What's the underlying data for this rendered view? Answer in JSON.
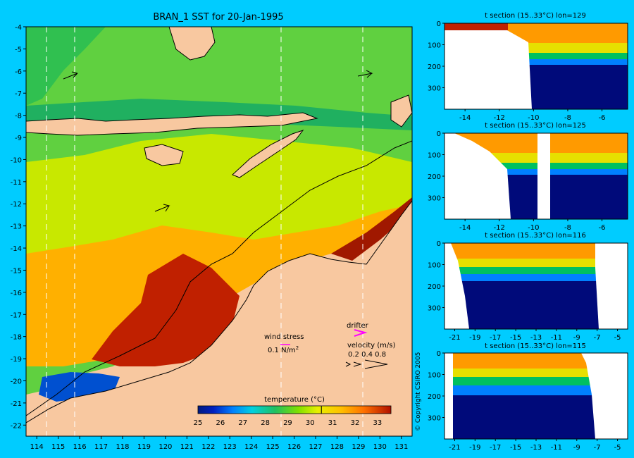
{
  "chart_data": [
    {
      "type": "heatmap",
      "title": "BRAN_1 SST for 20-Jan-1995",
      "xticks": [
        "114",
        "115",
        "116",
        "117",
        "118",
        "119",
        "120",
        "121",
        "122",
        "123",
        "124",
        "125",
        "126",
        "127",
        "128",
        "129",
        "130",
        "131"
      ],
      "yticks": [
        "-4",
        "-5",
        "-6",
        "-7",
        "-8",
        "-9",
        "-10",
        "-11",
        "-12",
        "-13",
        "-14",
        "-15",
        "-16",
        "-17",
        "-18",
        "-19",
        "-20",
        "-21",
        "-22"
      ],
      "xlim": [
        113.5,
        131.5
      ],
      "ylim": [
        -22.5,
        -4
      ],
      "dashed_section_lons": [
        114.5,
        115.8,
        125.4,
        129.2
      ],
      "colorbar": {
        "label": "temperature (°C)",
        "ticks": [
          "25",
          "26",
          "27",
          "28",
          "29",
          "30",
          "31",
          "32",
          "33"
        ],
        "range": [
          25,
          33.6
        ],
        "marker": 30.5
      },
      "legend": {
        "wind_stress": "wind stress",
        "wind_scale": "0.1 N/m",
        "wind_scale_sup": "2",
        "drifter": "drifter",
        "velocity": "velocity (m/s)",
        "velocity_scale": "0.2 0.4 0.8"
      },
      "copyright": "© Copyright CSIRO 2005"
    },
    {
      "type": "heatmap",
      "title": "t section (15..33°C) lon=129",
      "xticks": [
        "-14",
        "-12",
        "-10",
        "-8",
        "-6"
      ],
      "yticks": [
        "0",
        "100",
        "200",
        "300"
      ],
      "xlim": [
        -15.2,
        -4.5
      ],
      "ylim": [
        0,
        400
      ]
    },
    {
      "type": "heatmap",
      "title": "t section (15..33°C) lon=125",
      "xticks": [
        "-14",
        "-12",
        "-10",
        "-8",
        "-6"
      ],
      "yticks": [
        "0",
        "100",
        "200",
        "300"
      ],
      "xlim": [
        -15.2,
        -4.5
      ],
      "ylim": [
        0,
        400
      ]
    },
    {
      "type": "heatmap",
      "title": "t section (15..33°C) lon=116",
      "xticks": [
        "-21",
        "-19",
        "-17",
        "-15",
        "-13",
        "-11",
        "-9",
        "-7",
        "-5"
      ],
      "yticks": [
        "0",
        "100",
        "200",
        "300"
      ],
      "xlim": [
        -22,
        -4
      ],
      "ylim": [
        0,
        400
      ]
    },
    {
      "type": "heatmap",
      "title": "t section (15..33°C) lon=115",
      "xticks": [
        "-21",
        "-19",
        "-17",
        "-15",
        "-13",
        "-11",
        "-9",
        "-7",
        "-5"
      ],
      "yticks": [
        "0",
        "100",
        "200",
        "300"
      ],
      "xlim": [
        -22,
        -4
      ],
      "ylim": [
        0,
        400
      ]
    }
  ]
}
